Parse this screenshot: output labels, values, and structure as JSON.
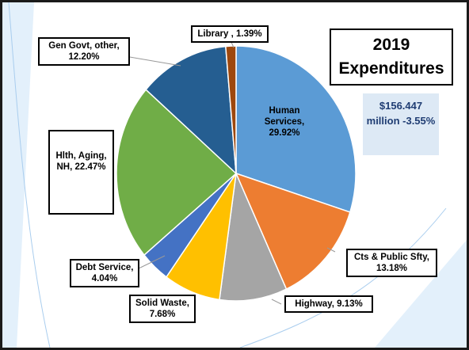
{
  "chart_data": {
    "type": "pie",
    "title": "2019 Expenditures",
    "subtitle": "$156.447 million -3.55%",
    "categories": [
      "Human Services,",
      "Cts & Public Sfty,",
      "Highway,",
      "Solid Waste,",
      "Debt Service,",
      "Hlth, Aging, NH,",
      "Gen Govt, other,",
      "Library ,"
    ],
    "values": [
      29.92,
      13.18,
      9.13,
      7.68,
      4.04,
      22.47,
      12.2,
      1.39
    ],
    "value_labels": [
      "29.92%",
      "13.18%",
      "9.13%",
      "7.68%",
      "4.04%",
      "22.47%",
      "12.20%",
      "1.39%"
    ],
    "colors": [
      "#5b9bd5",
      "#ed7d31",
      "#a5a5a5",
      "#ffc000",
      "#4472c4",
      "#70ad47",
      "#255e91",
      "#9e480e"
    ]
  }
}
